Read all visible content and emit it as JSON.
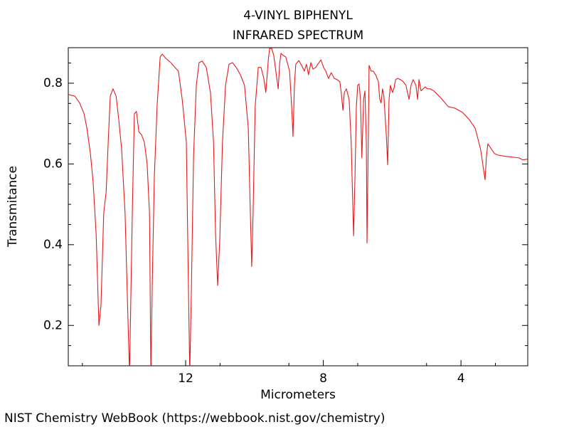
{
  "chart_data": {
    "type": "line",
    "title": "4-VINYL BIPHENYL",
    "subtitle": "INFRARED SPECTRUM",
    "x_label": "Micrometers",
    "y_label": "Transmitance",
    "caption": "NIST Chemistry WebBook (https://webbook.nist.gov/chemistry)",
    "color": "#e41a1c",
    "xlim": [
      15.41,
      2.06
    ],
    "ylim": [
      0.1,
      0.888
    ],
    "xticks": [
      12,
      8,
      4
    ],
    "yticks": [
      0.2,
      0.4,
      0.6,
      0.8
    ],
    "x_minor_ticks": [
      15,
      13,
      11,
      9,
      7,
      5,
      3
    ],
    "y_minor_ticks": [
      0.15,
      0.25,
      0.3,
      0.35,
      0.45,
      0.5,
      0.55,
      0.65,
      0.7,
      0.75,
      0.85
    ],
    "x": [
      15.41,
      15.22,
      15.08,
      14.95,
      14.87,
      14.77,
      14.69,
      14.6,
      14.52,
      14.46,
      14.38,
      14.31,
      14.25,
      14.19,
      14.11,
      14.02,
      13.94,
      13.86,
      13.76,
      13.67,
      13.63,
      13.55,
      13.49,
      13.43,
      13.36,
      13.28,
      13.2,
      13.12,
      13.05,
      13.01,
      12.97,
      12.91,
      12.83,
      12.74,
      12.68,
      12.58,
      12.43,
      12.31,
      12.21,
      12.1,
      11.98,
      11.92,
      11.88,
      11.83,
      11.77,
      11.69,
      11.61,
      11.52,
      11.4,
      11.28,
      11.19,
      11.13,
      11.07,
      11.01,
      10.93,
      10.84,
      10.74,
      10.64,
      10.53,
      10.41,
      10.29,
      10.18,
      10.12,
      10.08,
      10.04,
      9.98,
      9.89,
      9.81,
      9.73,
      9.67,
      9.6,
      9.56,
      9.5,
      9.44,
      9.38,
      9.31,
      9.27,
      9.23,
      9.17,
      9.09,
      8.98,
      8.92,
      8.88,
      8.84,
      8.8,
      8.71,
      8.63,
      8.55,
      8.49,
      8.43,
      8.36,
      8.3,
      8.22,
      8.16,
      8.07,
      7.99,
      7.93,
      7.85,
      7.77,
      7.68,
      7.6,
      7.52,
      7.48,
      7.43,
      7.39,
      7.33,
      7.25,
      7.19,
      7.12,
      7.08,
      7.04,
      7.0,
      6.96,
      6.92,
      6.88,
      6.83,
      6.79,
      6.75,
      6.73,
      6.69,
      6.67,
      6.61,
      6.55,
      6.48,
      6.4,
      6.36,
      6.32,
      6.28,
      6.24,
      6.17,
      6.13,
      6.09,
      6.05,
      5.99,
      5.95,
      5.9,
      5.84,
      5.76,
      5.68,
      5.6,
      5.51,
      5.45,
      5.39,
      5.31,
      5.26,
      5.22,
      5.16,
      5.1,
      5.04,
      4.98,
      4.89,
      4.79,
      4.58,
      4.37,
      4.17,
      3.96,
      3.76,
      3.59,
      3.51,
      3.43,
      3.34,
      3.3,
      3.26,
      3.22,
      3.14,
      3.03,
      2.93,
      2.72,
      2.52,
      2.31,
      2.21,
      2.06
    ],
    "values": [
      0.772,
      0.768,
      0.751,
      0.724,
      0.689,
      0.628,
      0.557,
      0.425,
      0.2,
      0.249,
      0.478,
      0.531,
      0.654,
      0.768,
      0.786,
      0.768,
      0.707,
      0.636,
      0.478,
      0.197,
      0.08,
      0.478,
      0.724,
      0.73,
      0.68,
      0.672,
      0.654,
      0.601,
      0.478,
      0.08,
      0.302,
      0.566,
      0.742,
      0.865,
      0.872,
      0.862,
      0.851,
      0.839,
      0.83,
      0.76,
      0.654,
      0.302,
      0.08,
      0.302,
      0.619,
      0.795,
      0.851,
      0.855,
      0.839,
      0.777,
      0.654,
      0.425,
      0.299,
      0.408,
      0.654,
      0.795,
      0.847,
      0.851,
      0.839,
      0.821,
      0.795,
      0.689,
      0.478,
      0.346,
      0.478,
      0.742,
      0.839,
      0.839,
      0.812,
      0.777,
      0.856,
      0.886,
      0.886,
      0.869,
      0.83,
      0.786,
      0.847,
      0.874,
      0.869,
      0.865,
      0.83,
      0.742,
      0.668,
      0.795,
      0.847,
      0.856,
      0.844,
      0.83,
      0.847,
      0.821,
      0.851,
      0.835,
      0.839,
      0.847,
      0.858,
      0.839,
      0.83,
      0.812,
      0.826,
      0.812,
      0.809,
      0.804,
      0.777,
      0.733,
      0.777,
      0.786,
      0.76,
      0.654,
      0.422,
      0.566,
      0.742,
      0.795,
      0.798,
      0.76,
      0.615,
      0.76,
      0.781,
      0.654,
      0.404,
      0.689,
      0.844,
      0.83,
      0.83,
      0.821,
      0.804,
      0.76,
      0.751,
      0.786,
      0.768,
      0.672,
      0.598,
      0.76,
      0.795,
      0.777,
      0.786,
      0.809,
      0.812,
      0.809,
      0.804,
      0.795,
      0.76,
      0.795,
      0.809,
      0.795,
      0.76,
      0.809,
      0.781,
      0.786,
      0.791,
      0.786,
      0.786,
      0.781,
      0.763,
      0.742,
      0.738,
      0.728,
      0.71,
      0.689,
      0.663,
      0.636,
      0.584,
      0.561,
      0.619,
      0.65,
      0.64,
      0.626,
      0.622,
      0.619,
      0.617,
      0.615,
      0.61,
      0.612
    ]
  }
}
